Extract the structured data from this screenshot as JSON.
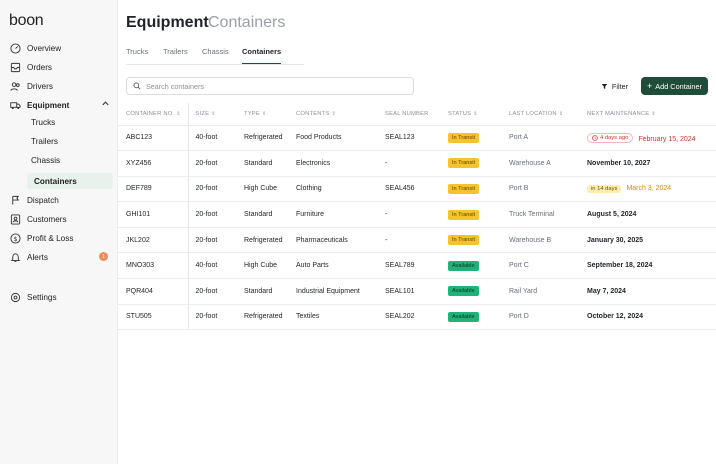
{
  "app": {
    "logo": "boon"
  },
  "sidebar": {
    "items": [
      {
        "label": "Overview",
        "icon": "gauge-icon"
      },
      {
        "label": "Orders",
        "icon": "orders-icon"
      },
      {
        "label": "Drivers",
        "icon": "users-icon"
      },
      {
        "label": "Equipment",
        "icon": "truck-icon"
      },
      {
        "label": "Dispatch",
        "icon": "dispatch-icon"
      },
      {
        "label": "Customers",
        "icon": "customers-icon"
      },
      {
        "label": "Profit & Loss",
        "icon": "dollar-icon"
      },
      {
        "label": "Alerts",
        "icon": "bell-icon"
      },
      {
        "label": "Settings",
        "icon": "gear-icon"
      }
    ],
    "equipment_sub": [
      "Trucks",
      "Trailers",
      "Chassis",
      "Containers"
    ],
    "alerts_badge": "1"
  },
  "header": {
    "title": "Equipment",
    "subtitle": "Containers"
  },
  "tabs": [
    "Trucks",
    "Trailers",
    "Chassis",
    "Containers"
  ],
  "search": {
    "placeholder": "Search containers"
  },
  "toolbar": {
    "filter_label": "Filter",
    "add_label": "Add Container"
  },
  "colors": {
    "accent": "#1f4d3a",
    "transit": "#f6c32b",
    "available": "#1fb37a",
    "overdue": "#c8372d"
  },
  "table": {
    "headers": [
      "CONTAINER NO.",
      "SIZE",
      "TYPE",
      "CONTENTS",
      "SEAL NUMBER",
      "STATUS",
      "LAST LOCATION",
      "NEXT MAINTENANCE"
    ],
    "rows": [
      {
        "no": "ABC123",
        "size": "40-foot",
        "type": "Refrigerated",
        "contents": "Food Products",
        "seal": "SEAL123",
        "status": "In Transit",
        "location": "Port A",
        "chip": "4 days ago",
        "maintenance": "February 15, 2024"
      },
      {
        "no": "XYZ456",
        "size": "20-foot",
        "type": "Standard",
        "contents": "Electronics",
        "seal": "-",
        "status": "In Transit",
        "location": "Warehouse A",
        "chip": "",
        "maintenance": "November 10, 2027"
      },
      {
        "no": "DEF789",
        "size": "20-foot",
        "type": "High Cube",
        "contents": "Clothing",
        "seal": "SEAL456",
        "status": "In Transit",
        "location": "Port B",
        "chip": "in 14 days",
        "maintenance": "March 3, 2024"
      },
      {
        "no": "GHI101",
        "size": "20-foot",
        "type": "Standard",
        "contents": "Furniture",
        "seal": "-",
        "status": "In Transit",
        "location": "Truck Terminal",
        "chip": "",
        "maintenance": "August 5, 2024"
      },
      {
        "no": "JKL202",
        "size": "20-foot",
        "type": "Refrigerated",
        "contents": "Pharmaceuticals",
        "seal": "-",
        "status": "In Transit",
        "location": "Warehouse B",
        "chip": "",
        "maintenance": "January 30, 2025"
      },
      {
        "no": "MNO303",
        "size": "40-foot",
        "type": "High Cube",
        "contents": "Auto Parts",
        "seal": "SEAL789",
        "status": "Available",
        "location": "Port C",
        "chip": "",
        "maintenance": "September 18, 2024"
      },
      {
        "no": "PQR404",
        "size": "20-foot",
        "type": "Standard",
        "contents": "Industrial Equipment",
        "seal": "SEAL101",
        "status": "Available",
        "location": "Rail Yard",
        "chip": "",
        "maintenance": "May 7, 2024"
      },
      {
        "no": "STU505",
        "size": "20-foot",
        "type": "Refrigerated",
        "contents": "Textiles",
        "seal": "SEAL202",
        "status": "Available",
        "location": "Port D",
        "chip": "",
        "maintenance": "October 12, 2024"
      }
    ]
  }
}
